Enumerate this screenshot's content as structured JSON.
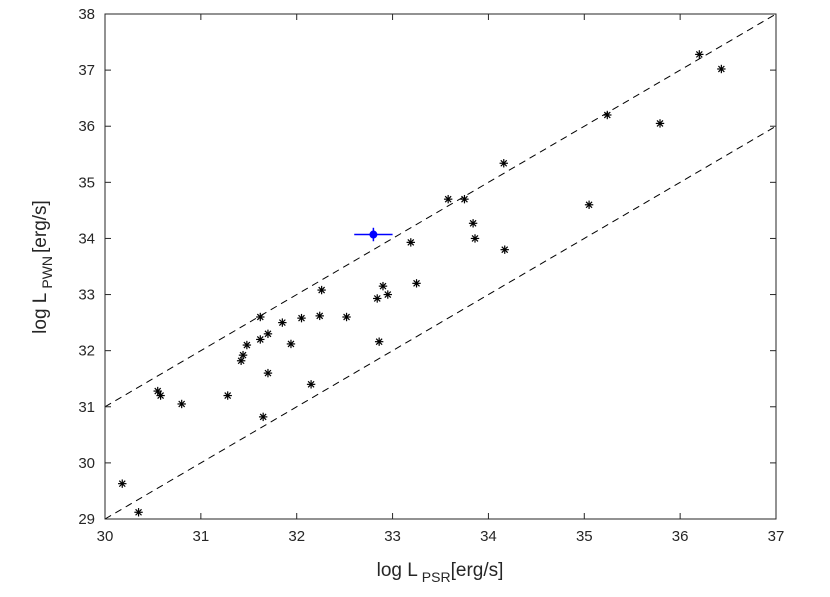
{
  "chart_data": {
    "type": "scatter",
    "xlabel": {
      "main": "log L",
      "sub": "PSR",
      "unit": "[erg/s]"
    },
    "ylabel": {
      "main": "log L",
      "sub": "PWN",
      "unit": "[erg/s]"
    },
    "xlim": [
      30,
      37
    ],
    "ylim": [
      29,
      38
    ],
    "xticks": [
      "30",
      "31",
      "32",
      "33",
      "34",
      "35",
      "36",
      "37"
    ],
    "yticks": [
      "29",
      "30",
      "31",
      "32",
      "33",
      "34",
      "35",
      "36",
      "37",
      "38"
    ],
    "grid": false,
    "colors": {
      "points": "#000000",
      "highlight": "#0000ff",
      "lines": "#000000",
      "axes": "#262626"
    },
    "series": [
      {
        "marker": "asterisk",
        "x": [
          30.18,
          30.35,
          30.55,
          30.58,
          30.8,
          31.28,
          31.42,
          31.44,
          31.48,
          31.62,
          31.62,
          31.65,
          31.7,
          31.7,
          31.85,
          31.94,
          32.05,
          32.15,
          32.24,
          32.26,
          32.52,
          32.84,
          32.86,
          32.9,
          32.95,
          33.19,
          33.25,
          33.58,
          33.75,
          33.84,
          33.86,
          34.16,
          34.17,
          35.05,
          35.24,
          35.79,
          36.2,
          36.43
        ],
        "y": [
          29.63,
          29.12,
          31.28,
          31.2,
          31.05,
          31.2,
          31.82,
          31.92,
          32.1,
          32.6,
          32.2,
          30.82,
          32.3,
          31.6,
          32.5,
          32.12,
          32.58,
          31.4,
          32.62,
          33.08,
          32.6,
          32.93,
          32.16,
          33.15,
          33.0,
          33.93,
          33.2,
          34.7,
          34.7,
          34.27,
          34.0,
          35.34,
          33.8,
          34.6,
          36.2,
          36.05,
          37.28,
          37.02
        ]
      },
      {
        "marker": "filled-circle-with-error-bars",
        "x": [
          32.8
        ],
        "y": [
          34.07
        ],
        "xerr": [
          0.2
        ],
        "yerr": [
          0.12
        ]
      }
    ],
    "reference_lines": [
      {
        "style": "dashed",
        "from": [
          30,
          31
        ],
        "to": [
          37,
          38
        ]
      },
      {
        "style": "dashed",
        "from": [
          30,
          29
        ],
        "to": [
          37,
          36
        ]
      }
    ]
  }
}
